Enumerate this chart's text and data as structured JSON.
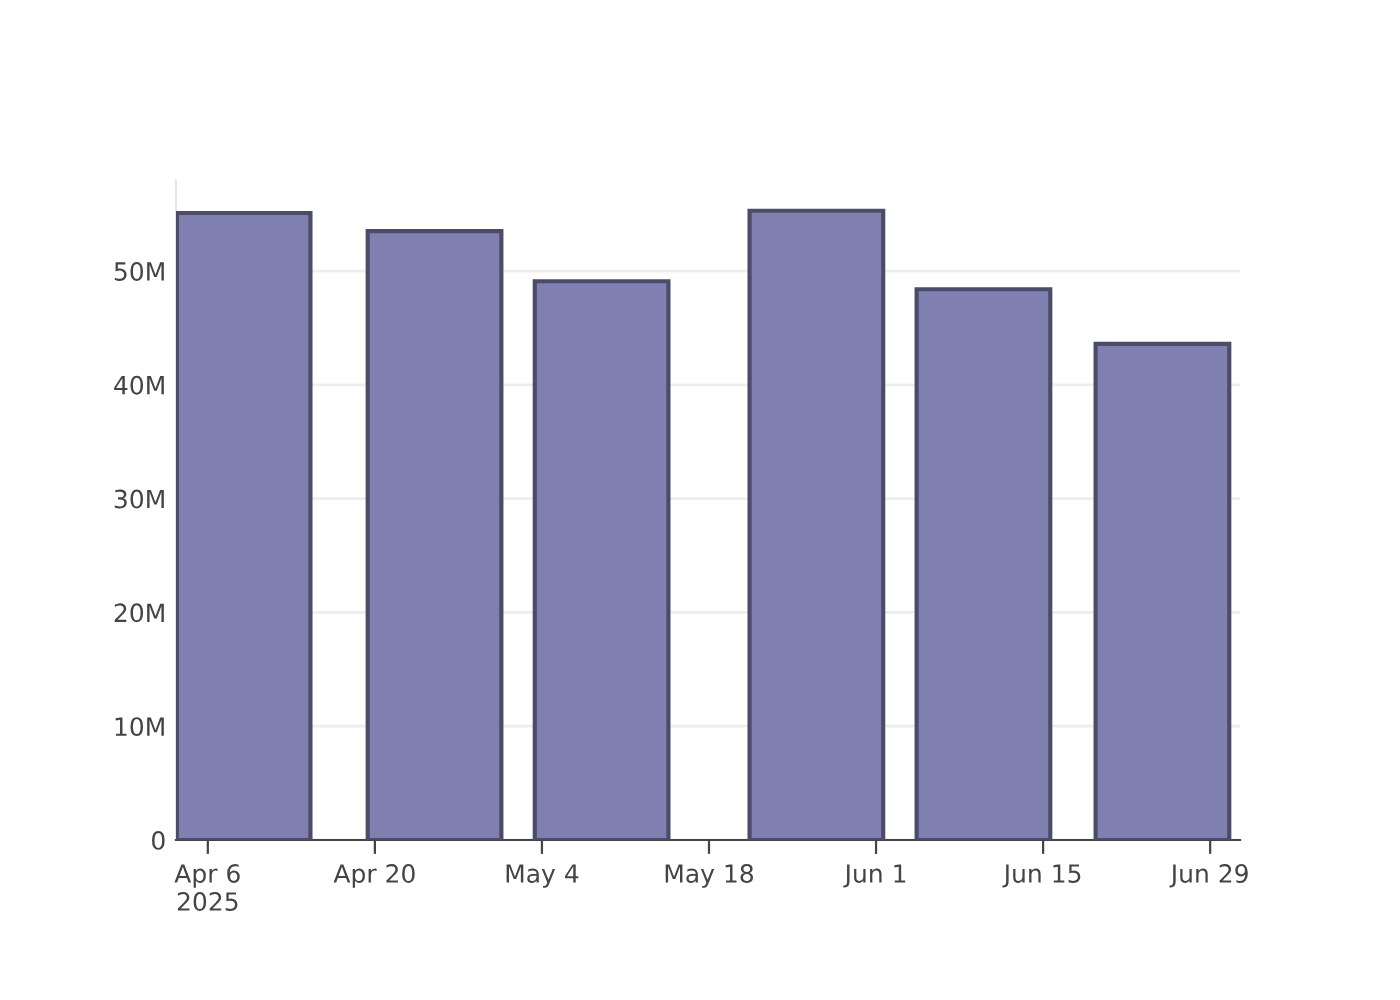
{
  "chart_data": {
    "type": "bar",
    "x": [
      "2025-04-09",
      "2025-04-25",
      "2025-05-09",
      "2025-05-27",
      "2025-06-10",
      "2025-06-25"
    ],
    "values": [
      55100000,
      53500000,
      49100000,
      55300000,
      48400000,
      43600000
    ],
    "color": "#7f7fb0",
    "xlim": [
      "2025-04-03T08:00",
      "2025-07-01T12:00"
    ],
    "xticks": [
      {
        "value": "2025-04-06",
        "label": "Apr 6\n2025"
      },
      {
        "value": "2025-04-20",
        "label": "Apr 20"
      },
      {
        "value": "2025-05-04",
        "label": "May 4"
      },
      {
        "value": "2025-05-18",
        "label": "May 18"
      },
      {
        "value": "2025-06-01",
        "label": "Jun 1"
      },
      {
        "value": "2025-06-15",
        "label": "Jun 15"
      },
      {
        "value": "2025-06-29",
        "label": "Jun 29"
      }
    ],
    "yticks": [
      {
        "value": 0,
        "label": "0"
      },
      {
        "value": 10000000,
        "label": "10M"
      },
      {
        "value": 20000000,
        "label": "20M"
      },
      {
        "value": 30000000,
        "label": "30M"
      },
      {
        "value": 40000000,
        "label": "40M"
      },
      {
        "value": 50000000,
        "label": "50M"
      }
    ],
    "ylim": [
      0,
      58000000
    ],
    "grid": "y"
  }
}
